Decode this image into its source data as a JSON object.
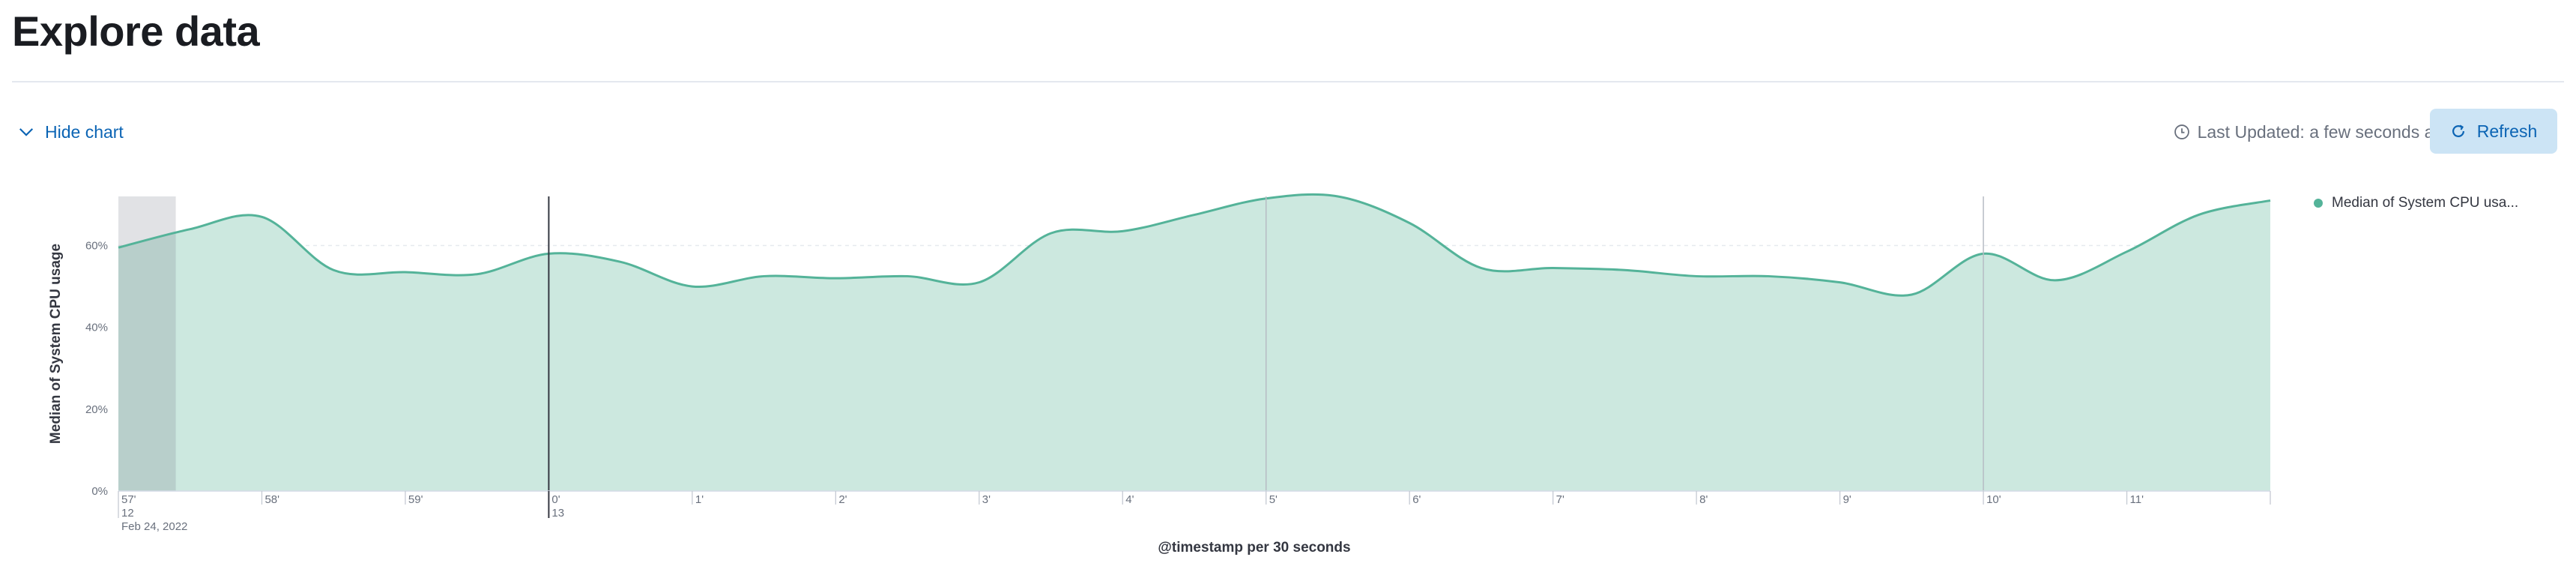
{
  "header": {
    "title": "Explore data"
  },
  "toolbar": {
    "hide_chart_label": "Hide chart",
    "last_updated_label": "Last Updated: a few seconds ago",
    "refresh_label": "Refresh"
  },
  "colors": {
    "series_line": "#54b399",
    "series_fill": "#cce8df",
    "accent": "#0b64b4",
    "button_bg": "#cce4f5"
  },
  "icons": {
    "hide_chart": "chevron-down-icon",
    "last_updated": "clock-icon",
    "refresh": "refresh-icon"
  },
  "chart_data": {
    "type": "area",
    "title": "",
    "xlabel": "@timestamp per 30 seconds",
    "ylabel": "Median of System CPU usage",
    "ylim": [
      0,
      72
    ],
    "yticks": [
      0,
      20,
      40,
      60
    ],
    "ytick_labels": [
      "0%",
      "20%",
      "40%",
      "60%"
    ],
    "grid": "horizontal dashed",
    "legend_position": "right",
    "x_unit": "minutes from 23:57 (Feb 24, 2022)",
    "xticks": [
      {
        "x": 0,
        "label": "57'",
        "sub": "12",
        "sub2": "Feb 24, 2022"
      },
      {
        "x": 1,
        "label": "58'"
      },
      {
        "x": 2,
        "label": "59'"
      },
      {
        "x": 3,
        "label": "0'",
        "sub": "13"
      },
      {
        "x": 4,
        "label": "1'"
      },
      {
        "x": 5,
        "label": "2'"
      },
      {
        "x": 6,
        "label": "3'"
      },
      {
        "x": 7,
        "label": "4'"
      },
      {
        "x": 8,
        "label": "5'"
      },
      {
        "x": 9,
        "label": "6'"
      },
      {
        "x": 10,
        "label": "7'"
      },
      {
        "x": 11,
        "label": "8'"
      },
      {
        "x": 12,
        "label": "9'"
      },
      {
        "x": 13,
        "label": "10'"
      },
      {
        "x": 14,
        "label": "11'"
      }
    ],
    "xlim": [
      0,
      15
    ],
    "brush_range": [
      0,
      0.4
    ],
    "marker_lines": [
      3,
      8,
      13
    ],
    "series": [
      {
        "name": "Median of System CPU usa...",
        "x": [
          0,
          0.5,
          1,
          1.5,
          2,
          2.5,
          3,
          3.5,
          4,
          4.5,
          5,
          5.5,
          6,
          6.5,
          7,
          7.5,
          8,
          8.5,
          9,
          9.5,
          10,
          10.5,
          11,
          11.5,
          12,
          12.5,
          13,
          13.5,
          14,
          14.5,
          15
        ],
        "values": [
          59.5,
          64,
          67,
          54,
          53.5,
          53,
          58,
          56,
          50,
          52.5,
          52,
          52.5,
          51,
          63,
          63.5,
          67.5,
          71.5,
          72,
          65.5,
          54.5,
          54.5,
          54,
          52.5,
          52.5,
          51,
          48,
          58,
          51.5,
          58.5,
          67.5,
          71
        ]
      }
    ]
  }
}
